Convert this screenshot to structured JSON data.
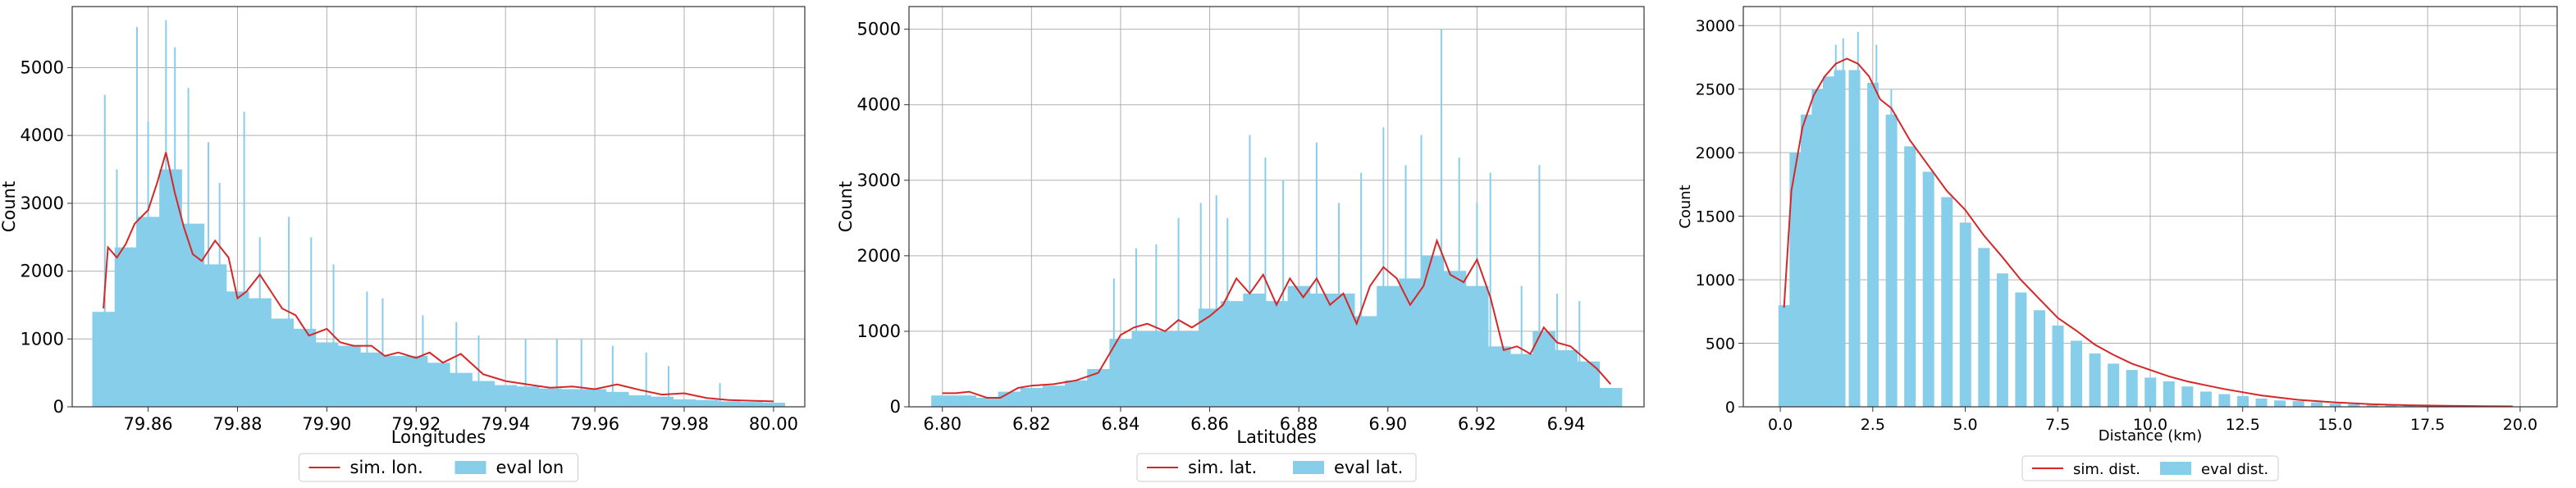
{
  "chart_data": [
    {
      "type": "area",
      "xlabel": "Longitudes",
      "ylabel": "Count",
      "xlim": [
        79.843,
        80.007
      ],
      "ylim": [
        0,
        5900
      ],
      "xticks": [
        79.86,
        79.88,
        79.9,
        79.92,
        79.94,
        79.96,
        79.98,
        80.0
      ],
      "xtick_labels": [
        "79.86",
        "79.88",
        "79.90",
        "79.92",
        "79.94",
        "79.96",
        "79.98",
        "80.00"
      ],
      "yticks": [
        0,
        1000,
        2000,
        3000,
        4000,
        5000
      ],
      "ytick_labels": [
        "0",
        "1000",
        "2000",
        "3000",
        "4000",
        "5000"
      ],
      "grid": true,
      "legend_placement": "bottom-center",
      "series": [
        {
          "name": "eval lon",
          "kind": "histogram",
          "color": "#87CEEB",
          "x": [
            79.85,
            79.855,
            79.86,
            79.865,
            79.87,
            79.875,
            79.88,
            79.885,
            79.89,
            79.895,
            79.9,
            79.905,
            79.91,
            79.915,
            79.92,
            79.925,
            79.93,
            79.935,
            79.94,
            79.945,
            79.95,
            79.955,
            79.96,
            79.965,
            79.97,
            79.975,
            79.98,
            79.985,
            79.99,
            79.995,
            80.0
          ],
          "values": [
            1400,
            2350,
            2800,
            3500,
            2700,
            2100,
            1700,
            1600,
            1300,
            1150,
            950,
            900,
            800,
            750,
            750,
            650,
            500,
            380,
            320,
            300,
            270,
            260,
            260,
            220,
            170,
            150,
            110,
            100,
            80,
            70,
            60
          ],
          "spikes": [
            {
              "x": 79.8503,
              "value": 4600
            },
            {
              "x": 79.853,
              "value": 3500
            },
            {
              "x": 79.8575,
              "value": 5600
            },
            {
              "x": 79.86,
              "value": 4200
            },
            {
              "x": 79.864,
              "value": 5700
            },
            {
              "x": 79.866,
              "value": 5300
            },
            {
              "x": 79.869,
              "value": 4700
            },
            {
              "x": 79.8735,
              "value": 3900
            },
            {
              "x": 79.876,
              "value": 3300
            },
            {
              "x": 79.8815,
              "value": 4350
            },
            {
              "x": 79.885,
              "value": 2500
            },
            {
              "x": 79.8915,
              "value": 2800
            },
            {
              "x": 79.8965,
              "value": 2500
            },
            {
              "x": 79.9015,
              "value": 2100
            },
            {
              "x": 79.909,
              "value": 1700
            },
            {
              "x": 79.9125,
              "value": 1600
            },
            {
              "x": 79.9215,
              "value": 1350
            },
            {
              "x": 79.929,
              "value": 1250
            },
            {
              "x": 79.934,
              "value": 1050
            },
            {
              "x": 79.9445,
              "value": 1000
            },
            {
              "x": 79.9515,
              "value": 1000
            },
            {
              "x": 79.957,
              "value": 1000
            },
            {
              "x": 79.964,
              "value": 900
            },
            {
              "x": 79.9715,
              "value": 800
            },
            {
              "x": 79.9765,
              "value": 600
            },
            {
              "x": 79.988,
              "value": 350
            }
          ]
        },
        {
          "name": "sim. lon.",
          "kind": "line",
          "color": "#D62728",
          "x": [
            79.85,
            79.851,
            79.853,
            79.855,
            79.857,
            79.86,
            79.862,
            79.864,
            79.866,
            79.868,
            79.87,
            79.872,
            79.875,
            79.878,
            79.88,
            79.882,
            79.885,
            79.888,
            79.89,
            79.893,
            79.896,
            79.9,
            79.903,
            79.906,
            79.91,
            79.913,
            79.916,
            79.92,
            79.923,
            79.926,
            79.93,
            79.935,
            79.94,
            79.945,
            79.95,
            79.955,
            79.96,
            79.965,
            79.97,
            79.975,
            79.98,
            79.985,
            79.99,
            79.995,
            80.0
          ],
          "values": [
            1450,
            2350,
            2200,
            2400,
            2700,
            2900,
            3300,
            3750,
            3150,
            2650,
            2250,
            2150,
            2450,
            2200,
            1600,
            1700,
            1950,
            1650,
            1450,
            1350,
            1050,
            1150,
            950,
            900,
            900,
            750,
            800,
            720,
            800,
            650,
            780,
            480,
            380,
            330,
            280,
            300,
            260,
            330,
            250,
            180,
            200,
            130,
            100,
            90,
            80
          ]
        }
      ]
    },
    {
      "type": "area",
      "xlabel": "Latitudes",
      "ylabel": "Count",
      "xlim": [
        6.7925,
        6.9575
      ],
      "ylim": [
        0,
        5300
      ],
      "xticks": [
        6.8,
        6.82,
        6.84,
        6.86,
        6.88,
        6.9,
        6.92,
        6.94
      ],
      "xtick_labels": [
        "6.80",
        "6.82",
        "6.84",
        "6.86",
        "6.88",
        "6.90",
        "6.92",
        "6.94"
      ],
      "yticks": [
        0,
        1000,
        2000,
        3000,
        4000,
        5000
      ],
      "ytick_labels": [
        "0",
        "1000",
        "2000",
        "3000",
        "4000",
        "5000"
      ],
      "grid": true,
      "legend_placement": "bottom-center",
      "series": [
        {
          "name": "eval lat.",
          "kind": "histogram",
          "color": "#87CEEB",
          "x": [
            6.8,
            6.805,
            6.81,
            6.815,
            6.82,
            6.825,
            6.83,
            6.835,
            6.84,
            6.845,
            6.85,
            6.855,
            6.86,
            6.865,
            6.87,
            6.875,
            6.88,
            6.885,
            6.89,
            6.895,
            6.9,
            6.905,
            6.91,
            6.915,
            6.92,
            6.925,
            6.93,
            6.935,
            6.94,
            6.945,
            6.95
          ],
          "values": [
            150,
            150,
            120,
            200,
            250,
            280,
            350,
            500,
            900,
            1000,
            1000,
            1000,
            1300,
            1400,
            1500,
            1400,
            1600,
            1500,
            1500,
            1200,
            1600,
            1700,
            2000,
            1800,
            1600,
            800,
            700,
            1000,
            750,
            600,
            250
          ],
          "spikes": [
            {
              "x": 6.8385,
              "value": 1700
            },
            {
              "x": 6.8435,
              "value": 2100
            },
            {
              "x": 6.848,
              "value": 2150
            },
            {
              "x": 6.853,
              "value": 2500
            },
            {
              "x": 6.858,
              "value": 2700
            },
            {
              "x": 6.8615,
              "value": 2800
            },
            {
              "x": 6.864,
              "value": 2500
            },
            {
              "x": 6.869,
              "value": 3600
            },
            {
              "x": 6.8725,
              "value": 3300
            },
            {
              "x": 6.8765,
              "value": 3000
            },
            {
              "x": 6.884,
              "value": 3500
            },
            {
              "x": 6.889,
              "value": 2700
            },
            {
              "x": 6.894,
              "value": 3100
            },
            {
              "x": 6.899,
              "value": 3700
            },
            {
              "x": 6.904,
              "value": 3200
            },
            {
              "x": 6.9075,
              "value": 3600
            },
            {
              "x": 6.912,
              "value": 5000
            },
            {
              "x": 6.916,
              "value": 3300
            },
            {
              "x": 6.92,
              "value": 2700
            },
            {
              "x": 6.923,
              "value": 3100
            },
            {
              "x": 6.93,
              "value": 1600
            },
            {
              "x": 6.934,
              "value": 3200
            },
            {
              "x": 6.938,
              "value": 1500
            },
            {
              "x": 6.943,
              "value": 1400
            }
          ]
        },
        {
          "name": "sim. lat.",
          "kind": "line",
          "color": "#D62728",
          "x": [
            6.8,
            6.803,
            6.806,
            6.81,
            6.813,
            6.817,
            6.82,
            6.825,
            6.83,
            6.835,
            6.84,
            6.843,
            6.846,
            6.85,
            6.853,
            6.856,
            6.86,
            6.863,
            6.866,
            6.869,
            6.872,
            6.875,
            6.878,
            6.881,
            6.884,
            6.887,
            6.89,
            6.893,
            6.896,
            6.899,
            6.902,
            6.905,
            6.908,
            6.911,
            6.914,
            6.917,
            6.92,
            6.923,
            6.926,
            6.929,
            6.932,
            6.935,
            6.938,
            6.941,
            6.944,
            6.947,
            6.95
          ],
          "values": [
            180,
            180,
            200,
            120,
            120,
            250,
            280,
            300,
            350,
            450,
            950,
            1050,
            1100,
            1000,
            1150,
            1050,
            1200,
            1350,
            1700,
            1500,
            1750,
            1350,
            1700,
            1450,
            1700,
            1350,
            1500,
            1100,
            1600,
            1850,
            1700,
            1350,
            1600,
            2200,
            1750,
            1650,
            1950,
            1450,
            750,
            800,
            700,
            1050,
            850,
            800,
            650,
            500,
            300
          ]
        }
      ]
    },
    {
      "type": "area",
      "xlabel": "Distance (km)",
      "ylabel": "Count",
      "xlim": [
        -1.0,
        21.0
      ],
      "ylim": [
        0,
        3150
      ],
      "xticks": [
        0.0,
        2.5,
        5.0,
        7.5,
        10.0,
        12.5,
        15.0,
        17.5,
        20.0
      ],
      "xtick_labels": [
        "0.0",
        "2.5",
        "5.0",
        "7.5",
        "10.0",
        "12.5",
        "15.0",
        "17.5",
        "20.0"
      ],
      "yticks": [
        0,
        500,
        1000,
        1500,
        2000,
        2500,
        3000
      ],
      "ytick_labels": [
        "0",
        "500",
        "1000",
        "1500",
        "2000",
        "2500",
        "3000"
      ],
      "grid": true,
      "legend_placement": "bottom-center",
      "series": [
        {
          "name": "eval dist.",
          "kind": "histogram",
          "color": "#87CEEB",
          "x": [
            0.1,
            0.4,
            0.7,
            1.0,
            1.3,
            1.6,
            2.0,
            2.5,
            3.0,
            3.5,
            4.0,
            4.5,
            5.0,
            5.5,
            6.0,
            6.5,
            7.0,
            7.5,
            8.0,
            8.5,
            9.0,
            9.5,
            10.0,
            10.5,
            11.0,
            11.5,
            12.0,
            12.5,
            13.0,
            13.5,
            14.0,
            14.5,
            15.0,
            15.5,
            16.0,
            16.5,
            17.0,
            17.5,
            18.0,
            18.5,
            19.0,
            19.5,
            20.0
          ],
          "values": [
            800,
            2000,
            2300,
            2500,
            2600,
            2650,
            2650,
            2550,
            2300,
            2050,
            1850,
            1650,
            1450,
            1250,
            1050,
            900,
            760,
            640,
            520,
            420,
            340,
            290,
            230,
            200,
            160,
            120,
            100,
            85,
            65,
            50,
            45,
            35,
            25,
            20,
            15,
            12,
            10,
            6,
            5,
            4,
            3,
            2,
            2
          ],
          "spikes": [
            {
              "x": 1.5,
              "value": 2850
            },
            {
              "x": 1.7,
              "value": 2900
            },
            {
              "x": 2.1,
              "value": 2950
            },
            {
              "x": 2.6,
              "value": 2850
            },
            {
              "x": 3.0,
              "value": 2500
            }
          ]
        },
        {
          "name": "sim. dist.",
          "kind": "line",
          "color": "#D62728",
          "x": [
            0.1,
            0.3,
            0.6,
            0.9,
            1.2,
            1.5,
            1.8,
            2.1,
            2.4,
            2.7,
            3.0,
            3.5,
            4.0,
            4.5,
            5.0,
            5.5,
            6.0,
            6.5,
            7.0,
            7.5,
            8.0,
            8.5,
            9.0,
            9.5,
            10.0,
            10.5,
            11.0,
            11.5,
            12.0,
            12.5,
            13.0,
            14.0,
            15.0,
            16.0,
            17.0,
            18.0,
            19.0,
            19.8
          ],
          "values": [
            780,
            1700,
            2200,
            2450,
            2600,
            2700,
            2740,
            2700,
            2600,
            2420,
            2350,
            2100,
            1900,
            1700,
            1550,
            1350,
            1180,
            1000,
            850,
            700,
            600,
            490,
            410,
            340,
            290,
            240,
            200,
            170,
            140,
            115,
            90,
            55,
            35,
            20,
            12,
            8,
            5,
            3
          ]
        }
      ]
    }
  ]
}
